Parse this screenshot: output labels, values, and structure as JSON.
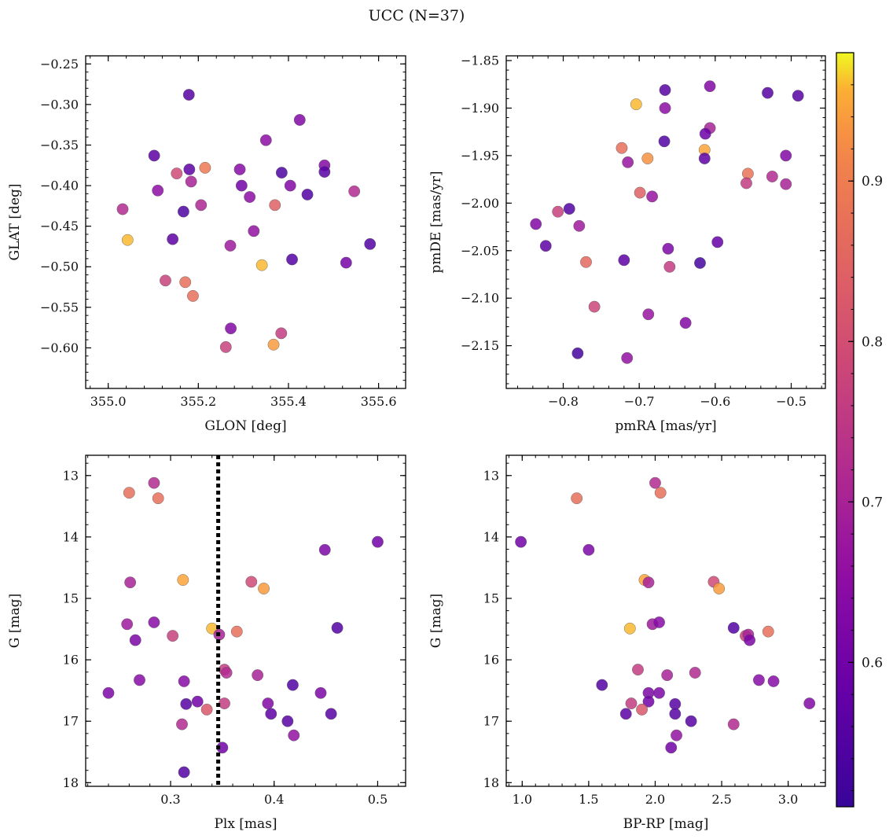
{
  "figure": {
    "title": "UCC (N=37)"
  },
  "chart_data": [
    {
      "type": "scatter",
      "xlabel": "GLON [deg]",
      "ylabel": "GLAT [deg]",
      "xlim": [
        354.95,
        355.66
      ],
      "ylim": [
        -0.65,
        -0.24
      ],
      "xticks": [
        355.0,
        355.2,
        355.4,
        355.6
      ],
      "xticklabels": [
        "355.0",
        "355.2",
        "355.4",
        "355.6"
      ],
      "yticks": [
        -0.25,
        -0.3,
        -0.35,
        -0.4,
        -0.45,
        -0.5,
        -0.55,
        -0.6
      ],
      "yticklabels": [
        "−0.25",
        "−0.30",
        "−0.35",
        "−0.40",
        "−0.45",
        "−0.50",
        "−0.55",
        "−0.60"
      ],
      "points": [
        {
          "x": 355.179,
          "y": -0.288,
          "c": 0.56
        },
        {
          "x": 355.425,
          "y": -0.319,
          "c": 0.63
        },
        {
          "x": 355.35,
          "y": -0.344,
          "c": 0.65
        },
        {
          "x": 355.102,
          "y": -0.363,
          "c": 0.57
        },
        {
          "x": 355.48,
          "y": -0.375,
          "c": 0.63
        },
        {
          "x": 355.18,
          "y": -0.38,
          "c": 0.57
        },
        {
          "x": 355.292,
          "y": -0.38,
          "c": 0.64
        },
        {
          "x": 355.215,
          "y": -0.378,
          "c": 0.89
        },
        {
          "x": 355.152,
          "y": -0.385,
          "c": 0.79
        },
        {
          "x": 355.385,
          "y": -0.384,
          "c": 0.54
        },
        {
          "x": 355.48,
          "y": -0.383,
          "c": 0.56
        },
        {
          "x": 355.184,
          "y": -0.395,
          "c": 0.7
        },
        {
          "x": 355.296,
          "y": -0.4,
          "c": 0.6
        },
        {
          "x": 355.404,
          "y": -0.4,
          "c": 0.63
        },
        {
          "x": 355.11,
          "y": -0.406,
          "c": 0.65
        },
        {
          "x": 355.546,
          "y": -0.407,
          "c": 0.72
        },
        {
          "x": 355.442,
          "y": -0.411,
          "c": 0.55
        },
        {
          "x": 355.314,
          "y": -0.414,
          "c": 0.65
        },
        {
          "x": 355.206,
          "y": -0.424,
          "c": 0.71
        },
        {
          "x": 355.37,
          "y": -0.424,
          "c": 0.84
        },
        {
          "x": 355.032,
          "y": -0.429,
          "c": 0.72
        },
        {
          "x": 355.167,
          "y": -0.432,
          "c": 0.54
        },
        {
          "x": 355.323,
          "y": -0.456,
          "c": 0.66
        },
        {
          "x": 355.043,
          "y": -0.467,
          "c": 0.96
        },
        {
          "x": 355.143,
          "y": -0.466,
          "c": 0.57
        },
        {
          "x": 355.581,
          "y": -0.472,
          "c": 0.55
        },
        {
          "x": 355.271,
          "y": -0.474,
          "c": 0.68
        },
        {
          "x": 355.408,
          "y": -0.491,
          "c": 0.55
        },
        {
          "x": 355.528,
          "y": -0.495,
          "c": 0.61
        },
        {
          "x": 355.341,
          "y": -0.498,
          "c": 0.96
        },
        {
          "x": 355.127,
          "y": -0.517,
          "c": 0.77
        },
        {
          "x": 355.171,
          "y": -0.519,
          "c": 0.87
        },
        {
          "x": 355.188,
          "y": -0.536,
          "c": 0.87
        },
        {
          "x": 355.384,
          "y": -0.582,
          "c": 0.76
        },
        {
          "x": 355.272,
          "y": -0.576,
          "c": 0.63
        },
        {
          "x": 355.261,
          "y": -0.599,
          "c": 0.77
        },
        {
          "x": 355.367,
          "y": -0.596,
          "c": 0.94
        }
      ]
    },
    {
      "type": "scatter",
      "xlabel": "pmRA [mas/yr]",
      "ylabel": "pmDE [mas/yr]",
      "xlim": [
        -0.875,
        -0.455
      ],
      "ylim": [
        -2.195,
        -1.845
      ],
      "xticks": [
        -0.8,
        -0.7,
        -0.6,
        -0.5
      ],
      "xticklabels": [
        "−0.8",
        "−0.7",
        "−0.6",
        "−0.5"
      ],
      "yticks": [
        -1.85,
        -1.9,
        -1.95,
        -2.0,
        -2.05,
        -2.1,
        -2.15
      ],
      "yticklabels": [
        "−1.85",
        "−1.90",
        "−1.95",
        "−2.00",
        "−2.05",
        "−2.10",
        "−2.15"
      ],
      "points": [
        {
          "x": -0.666,
          "y": -1.881,
          "c": 0.56
        },
        {
          "x": -0.607,
          "y": -1.877,
          "c": 0.63
        },
        {
          "x": -0.531,
          "y": -1.884,
          "c": 0.56
        },
        {
          "x": -0.491,
          "y": -1.887,
          "c": 0.56
        },
        {
          "x": -0.704,
          "y": -1.896,
          "c": 0.96
        },
        {
          "x": -0.666,
          "y": -1.9,
          "c": 0.65
        },
        {
          "x": -0.607,
          "y": -1.921,
          "c": 0.7
        },
        {
          "x": -0.613,
          "y": -1.927,
          "c": 0.59
        },
        {
          "x": -0.667,
          "y": -1.935,
          "c": 0.55
        },
        {
          "x": -0.614,
          "y": -1.944,
          "c": 0.95
        },
        {
          "x": -0.723,
          "y": -1.942,
          "c": 0.87
        },
        {
          "x": -0.689,
          "y": -1.953,
          "c": 0.93
        },
        {
          "x": -0.614,
          "y": -1.953,
          "c": 0.57
        },
        {
          "x": -0.507,
          "y": -1.95,
          "c": 0.63
        },
        {
          "x": -0.715,
          "y": -1.957,
          "c": 0.67
        },
        {
          "x": -0.557,
          "y": -1.969,
          "c": 0.88
        },
        {
          "x": -0.525,
          "y": -1.972,
          "c": 0.72
        },
        {
          "x": -0.559,
          "y": -1.979,
          "c": 0.76
        },
        {
          "x": -0.507,
          "y": -1.98,
          "c": 0.7
        },
        {
          "x": -0.699,
          "y": -1.989,
          "c": 0.84
        },
        {
          "x": -0.683,
          "y": -1.993,
          "c": 0.67
        },
        {
          "x": -0.792,
          "y": -2.006,
          "c": 0.55
        },
        {
          "x": -0.807,
          "y": -2.009,
          "c": 0.77
        },
        {
          "x": -0.836,
          "y": -2.022,
          "c": 0.63
        },
        {
          "x": -0.779,
          "y": -2.024,
          "c": 0.68
        },
        {
          "x": -0.597,
          "y": -2.041,
          "c": 0.58
        },
        {
          "x": -0.823,
          "y": -2.045,
          "c": 0.57
        },
        {
          "x": -0.662,
          "y": -2.048,
          "c": 0.62
        },
        {
          "x": -0.72,
          "y": -2.06,
          "c": 0.57
        },
        {
          "x": -0.77,
          "y": -2.062,
          "c": 0.86
        },
        {
          "x": -0.62,
          "y": -2.063,
          "c": 0.53
        },
        {
          "x": -0.66,
          "y": -2.067,
          "c": 0.76
        },
        {
          "x": -0.759,
          "y": -2.109,
          "c": 0.78
        },
        {
          "x": -0.688,
          "y": -2.117,
          "c": 0.67
        },
        {
          "x": -0.639,
          "y": -2.126,
          "c": 0.63
        },
        {
          "x": -0.781,
          "y": -2.158,
          "c": 0.53
        },
        {
          "x": -0.716,
          "y": -2.163,
          "c": 0.66
        }
      ]
    },
    {
      "type": "scatter",
      "xlabel": "Plx [mas]",
      "ylabel": "G [mag]",
      "xlim": [
        0.218,
        0.527
      ],
      "ylim": [
        18.06,
        12.67
      ],
      "xticks": [
        0.3,
        0.4,
        0.5
      ],
      "xticklabels": [
        "0.3",
        "0.4",
        "0.5"
      ],
      "yticks": [
        13,
        14,
        15,
        16,
        17,
        18
      ],
      "yticklabels": [
        "13",
        "14",
        "15",
        "16",
        "17",
        "18"
      ],
      "vline": {
        "x": 0.346,
        "style": "dotted",
        "color": "#000000"
      },
      "points": [
        {
          "x": 0.26,
          "y": 13.28,
          "c": 0.87
        },
        {
          "x": 0.284,
          "y": 13.12,
          "c": 0.72
        },
        {
          "x": 0.288,
          "y": 13.37,
          "c": 0.87
        },
        {
          "x": 0.5,
          "y": 14.08,
          "c": 0.6
        },
        {
          "x": 0.449,
          "y": 14.21,
          "c": 0.62
        },
        {
          "x": 0.261,
          "y": 14.74,
          "c": 0.7
        },
        {
          "x": 0.312,
          "y": 14.7,
          "c": 0.95
        },
        {
          "x": 0.378,
          "y": 14.73,
          "c": 0.79
        },
        {
          "x": 0.39,
          "y": 14.84,
          "c": 0.94
        },
        {
          "x": 0.258,
          "y": 15.42,
          "c": 0.68
        },
        {
          "x": 0.284,
          "y": 15.39,
          "c": 0.64
        },
        {
          "x": 0.34,
          "y": 15.49,
          "c": 0.96
        },
        {
          "x": 0.302,
          "y": 15.61,
          "c": 0.77
        },
        {
          "x": 0.347,
          "y": 15.59,
          "c": 0.7
        },
        {
          "x": 0.364,
          "y": 15.54,
          "c": 0.87
        },
        {
          "x": 0.461,
          "y": 15.48,
          "c": 0.55
        },
        {
          "x": 0.266,
          "y": 15.68,
          "c": 0.62
        },
        {
          "x": 0.352,
          "y": 16.16,
          "c": 0.76
        },
        {
          "x": 0.354,
          "y": 16.21,
          "c": 0.72
        },
        {
          "x": 0.384,
          "y": 16.25,
          "c": 0.7
        },
        {
          "x": 0.27,
          "y": 16.33,
          "c": 0.64
        },
        {
          "x": 0.313,
          "y": 16.35,
          "c": 0.64
        },
        {
          "x": 0.418,
          "y": 16.41,
          "c": 0.55
        },
        {
          "x": 0.24,
          "y": 16.54,
          "c": 0.62
        },
        {
          "x": 0.445,
          "y": 16.54,
          "c": 0.62
        },
        {
          "x": 0.326,
          "y": 16.68,
          "c": 0.6
        },
        {
          "x": 0.315,
          "y": 16.72,
          "c": 0.56
        },
        {
          "x": 0.352,
          "y": 16.71,
          "c": 0.76
        },
        {
          "x": 0.394,
          "y": 16.71,
          "c": 0.63
        },
        {
          "x": 0.335,
          "y": 16.81,
          "c": 0.82
        },
        {
          "x": 0.397,
          "y": 16.88,
          "c": 0.57
        },
        {
          "x": 0.455,
          "y": 16.88,
          "c": 0.56
        },
        {
          "x": 0.413,
          "y": 17.0,
          "c": 0.56
        },
        {
          "x": 0.311,
          "y": 17.05,
          "c": 0.72
        },
        {
          "x": 0.419,
          "y": 17.23,
          "c": 0.66
        },
        {
          "x": 0.35,
          "y": 17.43,
          "c": 0.6
        },
        {
          "x": 0.313,
          "y": 17.83,
          "c": 0.55
        }
      ]
    },
    {
      "type": "scatter",
      "xlabel": "BP-RP [mag]",
      "ylabel": "G [mag]",
      "xlim": [
        0.88,
        3.28
      ],
      "ylim": [
        18.06,
        12.67
      ],
      "xticks": [
        1.0,
        1.5,
        2.0,
        2.5,
        3.0
      ],
      "xticklabels": [
        "1.0",
        "1.5",
        "2.0",
        "2.5",
        "3.0"
      ],
      "yticks": [
        13,
        14,
        15,
        16,
        17,
        18
      ],
      "yticklabels": [
        "13",
        "14",
        "15",
        "16",
        "17",
        "18"
      ],
      "points": [
        {
          "x": 2.0,
          "y": 13.12,
          "c": 0.72
        },
        {
          "x": 2.04,
          "y": 13.28,
          "c": 0.87
        },
        {
          "x": 1.41,
          "y": 13.37,
          "c": 0.87
        },
        {
          "x": 0.99,
          "y": 14.08,
          "c": 0.6
        },
        {
          "x": 1.5,
          "y": 14.21,
          "c": 0.62
        },
        {
          "x": 1.92,
          "y": 14.7,
          "c": 0.95
        },
        {
          "x": 1.95,
          "y": 14.74,
          "c": 0.7
        },
        {
          "x": 2.44,
          "y": 14.73,
          "c": 0.79
        },
        {
          "x": 2.48,
          "y": 14.84,
          "c": 0.94
        },
        {
          "x": 1.98,
          "y": 15.42,
          "c": 0.68
        },
        {
          "x": 2.03,
          "y": 15.39,
          "c": 0.64
        },
        {
          "x": 1.81,
          "y": 15.49,
          "c": 0.96
        },
        {
          "x": 2.59,
          "y": 15.48,
          "c": 0.55
        },
        {
          "x": 2.68,
          "y": 15.61,
          "c": 0.77
        },
        {
          "x": 2.7,
          "y": 15.59,
          "c": 0.7
        },
        {
          "x": 2.85,
          "y": 15.54,
          "c": 0.87
        },
        {
          "x": 2.71,
          "y": 15.68,
          "c": 0.62
        },
        {
          "x": 1.87,
          "y": 16.16,
          "c": 0.76
        },
        {
          "x": 2.3,
          "y": 16.21,
          "c": 0.72
        },
        {
          "x": 2.09,
          "y": 16.25,
          "c": 0.7
        },
        {
          "x": 2.78,
          "y": 16.33,
          "c": 0.64
        },
        {
          "x": 2.89,
          "y": 16.35,
          "c": 0.64
        },
        {
          "x": 1.6,
          "y": 16.41,
          "c": 0.55
        },
        {
          "x": 1.95,
          "y": 16.54,
          "c": 0.62
        },
        {
          "x": 2.03,
          "y": 16.54,
          "c": 0.62
        },
        {
          "x": 1.95,
          "y": 16.68,
          "c": 0.6
        },
        {
          "x": 2.15,
          "y": 16.72,
          "c": 0.56
        },
        {
          "x": 1.82,
          "y": 16.71,
          "c": 0.76
        },
        {
          "x": 3.16,
          "y": 16.71,
          "c": 0.63
        },
        {
          "x": 1.9,
          "y": 16.81,
          "c": 0.82
        },
        {
          "x": 1.78,
          "y": 16.88,
          "c": 0.57
        },
        {
          "x": 2.15,
          "y": 16.88,
          "c": 0.56
        },
        {
          "x": 2.27,
          "y": 17.0,
          "c": 0.56
        },
        {
          "x": 2.59,
          "y": 17.05,
          "c": 0.72
        },
        {
          "x": 2.16,
          "y": 17.23,
          "c": 0.66
        },
        {
          "x": 2.12,
          "y": 17.43,
          "c": 0.6
        }
      ]
    }
  ],
  "colorbar": {
    "colormap": "plasma",
    "range": [
      0.51,
      0.98
    ],
    "ticks": [
      0.6,
      0.7,
      0.8,
      0.9
    ],
    "ticklabels": [
      "0.6",
      "0.7",
      "0.8",
      "0.9"
    ]
  }
}
